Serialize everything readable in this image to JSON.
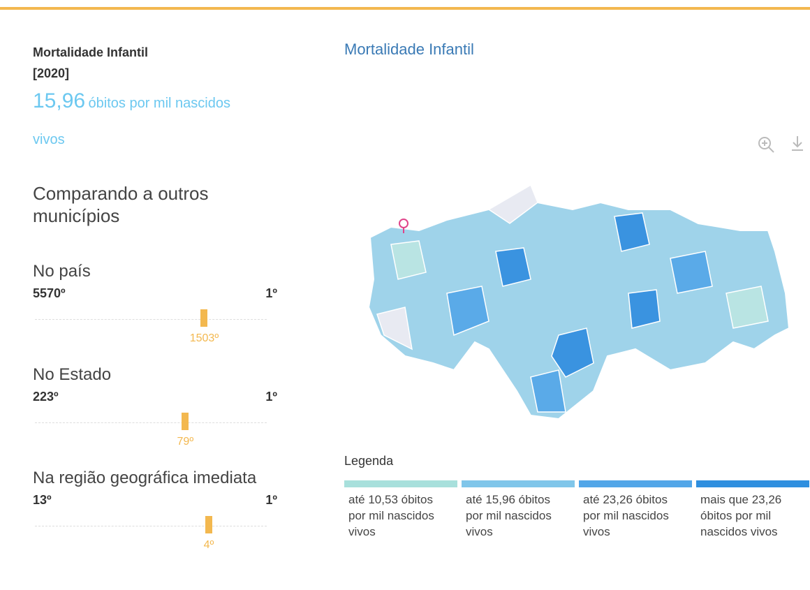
{
  "indicator": {
    "title": "Mortalidade Infantil",
    "year": "[2020]",
    "value": "15,96",
    "unit": "óbitos por mil nascidos vivos"
  },
  "comparison": {
    "heading": "Comparando a outros municípios",
    "rankings": [
      {
        "scope": "No país",
        "lowest": {
          "value": 5570,
          "label": "5570º"
        },
        "highest": {
          "value": 1,
          "label": "1º"
        },
        "position": {
          "value": 1503,
          "label": "1503º"
        }
      },
      {
        "scope": "No Estado",
        "lowest": {
          "value": 223,
          "label": "223º"
        },
        "highest": {
          "value": 1,
          "label": "1º"
        },
        "position": {
          "value": 79,
          "label": "79º"
        }
      },
      {
        "scope": "Na região geográfica imediata",
        "lowest": {
          "value": 13,
          "label": "13º"
        },
        "highest": {
          "value": 1,
          "label": "1º"
        },
        "position": {
          "value": 4,
          "label": "4º"
        }
      }
    ]
  },
  "map": {
    "title": "Mortalidade Infantil",
    "legend_title": "Legenda",
    "legend": [
      {
        "label": "até 10,53 óbitos por mil nascidos vivos",
        "color": "#a8e0dc"
      },
      {
        "label": "até 15,96 óbitos por mil nascidos vivos",
        "color": "#80c6ea"
      },
      {
        "label": "até 23,26 óbitos por mil nascidos vivos",
        "color": "#52a6e8"
      },
      {
        "label": "mais que 23,26 óbitos por mil nascidos vivos",
        "color": "#2f8fdf"
      }
    ]
  }
}
